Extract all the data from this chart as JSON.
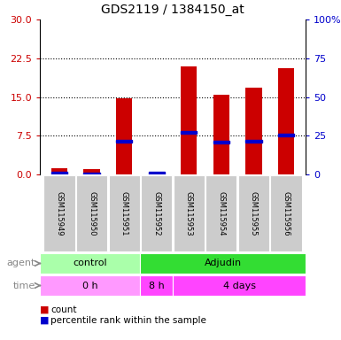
{
  "title": "GDS2119 / 1384150_at",
  "samples": [
    "GSM115949",
    "GSM115950",
    "GSM115951",
    "GSM115952",
    "GSM115953",
    "GSM115954",
    "GSM115955",
    "GSM115956"
  ],
  "count_values": [
    1.2,
    1.0,
    14.8,
    0.5,
    21.0,
    15.4,
    16.8,
    20.5
  ],
  "percentile_values": [
    0.3,
    0.15,
    6.5,
    0.2,
    8.2,
    6.2,
    6.5,
    7.6
  ],
  "left_yticks": [
    0,
    7.5,
    15,
    22.5,
    30
  ],
  "right_yticks": [
    0,
    25,
    50,
    75,
    100
  ],
  "right_ylabels": [
    "0",
    "25",
    "50",
    "75",
    "100%"
  ],
  "ylim": [
    0,
    30
  ],
  "bar_color": "#cc0000",
  "percentile_color": "#0000cc",
  "agent_groups": [
    {
      "label": "control",
      "start": 0,
      "end": 3,
      "color": "#aaffaa"
    },
    {
      "label": "Adjudin",
      "start": 3,
      "end": 8,
      "color": "#33dd33"
    }
  ],
  "time_groups": [
    {
      "label": "0 h",
      "start": 0,
      "end": 3,
      "color": "#ff99ff"
    },
    {
      "label": "8 h",
      "start": 3,
      "end": 4,
      "color": "#ff44ff"
    },
    {
      "label": "4 days",
      "start": 4,
      "end": 8,
      "color": "#ff44ff"
    }
  ],
  "legend_count_label": "count",
  "legend_pct_label": "percentile rank within the sample",
  "axis_color_left": "#cc0000",
  "axis_color_right": "#0000cc",
  "sample_box_color": "#cccccc",
  "bar_width": 0.5,
  "agent_label": "agent",
  "time_label": "time",
  "grid_dotted": [
    7.5,
    15,
    22.5
  ],
  "n_samples": 8
}
